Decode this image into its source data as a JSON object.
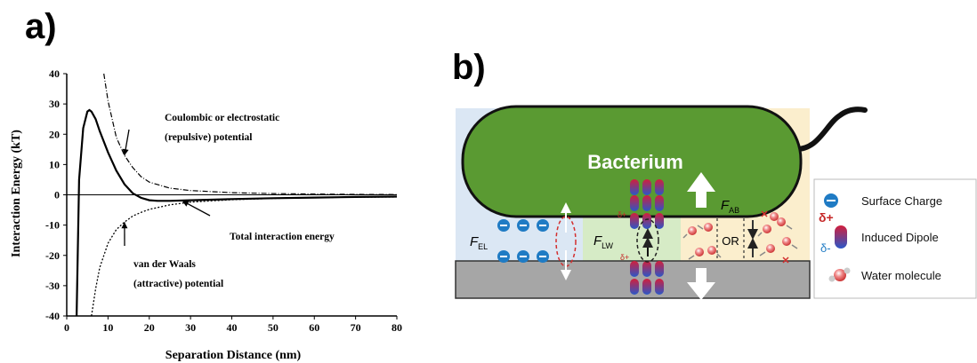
{
  "panel_a": {
    "label": "a)",
    "chart_data": {
      "type": "line",
      "xlabel": "Separation Distance (nm)",
      "ylabel": "Interaction Energy (kT)",
      "xlim": [
        0,
        80
      ],
      "ylim": [
        -40,
        40
      ],
      "x_ticks": [
        "0",
        "10",
        "20",
        "30",
        "40",
        "50",
        "60",
        "70",
        "80"
      ],
      "y_ticks": [
        "40",
        "30",
        "20",
        "10",
        "0",
        "-10",
        "-20",
        "-30",
        "-40"
      ],
      "series": [
        {
          "name": "Total interaction energy",
          "style": "solid",
          "x": [
            2.4,
            3,
            4,
            5,
            5.5,
            6,
            7,
            8,
            10,
            12,
            14,
            16,
            18,
            20,
            22,
            25,
            30,
            35,
            40,
            50,
            60,
            70,
            80
          ],
          "y": [
            -40,
            5,
            22,
            27.5,
            28,
            27.5,
            25,
            21,
            14,
            8,
            3.5,
            0.5,
            -1,
            -1.8,
            -2,
            -2,
            -1.8,
            -1.6,
            -1.4,
            -1.1,
            -0.9,
            -0.7,
            -0.6
          ]
        },
        {
          "name": "Coulombic or electrostatic (repulsive) potential",
          "style": "dash-dot",
          "x": [
            9,
            10,
            12,
            14,
            16,
            18,
            20,
            25,
            30,
            40,
            50,
            60,
            70,
            80
          ],
          "y": [
            40,
            31,
            19,
            13,
            9,
            6,
            4.2,
            2.2,
            1.4,
            0.7,
            0.4,
            0.25,
            0.15,
            0.1
          ]
        },
        {
          "name": "van der Waals (attractive) potential",
          "style": "dotted",
          "x": [
            6,
            7,
            8,
            10,
            12,
            14,
            16,
            18,
            20,
            25,
            30,
            40,
            50,
            60,
            70,
            80
          ],
          "y": [
            -40,
            -31,
            -24,
            -16,
            -11.5,
            -9,
            -7,
            -5.8,
            -4.8,
            -3.3,
            -2.4,
            -1.6,
            -1.2,
            -0.9,
            -0.8,
            -0.7
          ]
        }
      ],
      "annotations": [
        {
          "lines": [
            "Coulombic or electrostatic",
            "(repulsive) potential"
          ],
          "points_to_x": 14,
          "points_to_y": 13
        },
        {
          "lines": [
            "Total interaction energy"
          ],
          "points_to_x": 28,
          "points_to_y": -2
        },
        {
          "lines": [
            "van der Waals",
            "(attractive) potential"
          ],
          "points_to_x": 14,
          "points_to_y": -9
        }
      ]
    }
  },
  "panel_b": {
    "label": "b)",
    "bacterium_label": "Bacterium",
    "force_el": "F",
    "force_el_sub": "EL",
    "force_lw": "F",
    "force_lw_sub": "LW",
    "force_ab": "F",
    "force_ab_sub": "AB",
    "or_label": "OR",
    "delta_plus": "δ+",
    "delta_minus": "δ-",
    "legend": {
      "surface_charge": "Surface Charge",
      "induced_dipole": "Induced Dipole",
      "water_molecule": "Water molecule",
      "delta_plus": "δ+",
      "delta_minus": "δ-"
    },
    "colors": {
      "bacterium": "#5a9a32",
      "el_zone": "#dbe7f4",
      "lw_zone": "#d6ebc6",
      "ab_zone": "#fbeecd",
      "surface": "#a6a6a6",
      "charge": "#1f7bc4"
    }
  }
}
